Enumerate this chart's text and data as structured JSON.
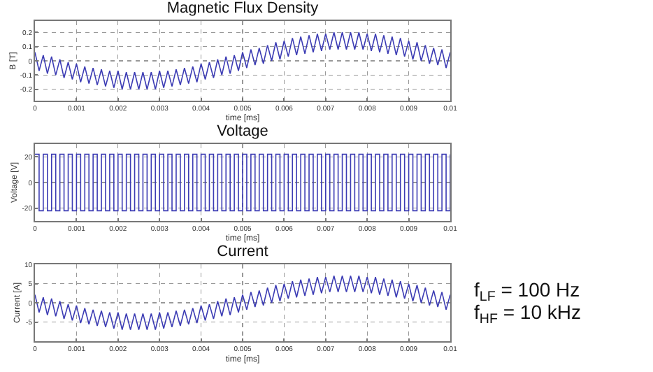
{
  "chart_data": [
    {
      "type": "line",
      "title": "Magnetic Flux Density",
      "xlabel": "time [ms]",
      "ylabel": "B [T]",
      "xlim": [
        0,
        0.01
      ],
      "xticks": [
        0,
        0.001,
        0.002,
        0.003,
        0.004,
        0.005,
        0.006,
        0.007,
        0.008,
        0.009,
        0.01
      ],
      "ylim": [
        -0.28,
        0.28
      ],
      "yticks": [
        -0.2,
        -0.1,
        0,
        0.1,
        0.2
      ],
      "grid": true,
      "line_style": "solid",
      "x": [
        0,
        0.0001,
        0.0002,
        0.0003,
        0.0004,
        0.0005,
        0.0006,
        0.0007,
        0.0008,
        0.0009,
        0.001,
        0.0011,
        0.0012,
        0.0013,
        0.0014,
        0.0015,
        0.0016,
        0.0017,
        0.0018,
        0.0019,
        0.002,
        0.0021,
        0.0022,
        0.0023,
        0.0024,
        0.0025,
        0.0026,
        0.0027,
        0.0028,
        0.0029,
        0.003,
        0.0031,
        0.0032,
        0.0033,
        0.0034,
        0.0035,
        0.0036,
        0.0037,
        0.0038,
        0.0039,
        0.004,
        0.0041,
        0.0042,
        0.0043,
        0.0044,
        0.0045,
        0.0046,
        0.0047,
        0.0048,
        0.0049,
        0.005,
        0.0051,
        0.0052,
        0.0053,
        0.0054,
        0.0055,
        0.0056,
        0.0057,
        0.0058,
        0.0059,
        0.006,
        0.0061,
        0.0062,
        0.0063,
        0.0064,
        0.0065,
        0.0066,
        0.0067,
        0.0068,
        0.0069,
        0.007,
        0.0071,
        0.0072,
        0.0073,
        0.0074,
        0.0075,
        0.0076,
        0.0077,
        0.0078,
        0.0079,
        0.008,
        0.0081,
        0.0082,
        0.0083,
        0.0084,
        0.0085,
        0.0086,
        0.0087,
        0.0088,
        0.0089,
        0.009,
        0.0091,
        0.0092,
        0.0093,
        0.0094,
        0.0095,
        0.0096,
        0.0097,
        0.0098,
        0.0099,
        0.01
      ],
      "series": [
        {
          "color": "#3c3cb4",
          "values": [
            0.06,
            -0.07,
            0.04,
            -0.09,
            0.03,
            -0.1,
            0.01,
            -0.12,
            -0.01,
            -0.13,
            -0.02,
            -0.15,
            -0.04,
            -0.16,
            -0.05,
            -0.17,
            -0.06,
            -0.18,
            -0.07,
            -0.19,
            -0.07,
            -0.2,
            -0.08,
            -0.2,
            -0.08,
            -0.2,
            -0.08,
            -0.2,
            -0.08,
            -0.2,
            -0.07,
            -0.19,
            -0.07,
            -0.18,
            -0.06,
            -0.17,
            -0.05,
            -0.16,
            -0.04,
            -0.15,
            -0.02,
            -0.13,
            -0.01,
            -0.12,
            0.01,
            -0.1,
            0.03,
            -0.09,
            0.04,
            -0.07,
            0.06,
            -0.05,
            0.08,
            -0.03,
            0.09,
            -0.02,
            0.11,
            0.0,
            0.13,
            0.01,
            0.14,
            0.03,
            0.16,
            0.04,
            0.17,
            0.05,
            0.18,
            0.06,
            0.19,
            0.07,
            0.19,
            0.08,
            0.2,
            0.08,
            0.2,
            0.08,
            0.2,
            0.08,
            0.2,
            0.08,
            0.19,
            0.07,
            0.19,
            0.06,
            0.18,
            0.05,
            0.17,
            0.04,
            0.16,
            0.03,
            0.14,
            0.01,
            0.13,
            0.0,
            0.11,
            -0.02,
            0.09,
            -0.03,
            0.08,
            -0.05,
            0.06
          ]
        }
      ]
    },
    {
      "type": "step",
      "title": "Voltage",
      "xlabel": "time [ms]",
      "ylabel": "Voltage [V]",
      "xlim": [
        0,
        0.01
      ],
      "xticks": [
        0,
        0.001,
        0.002,
        0.003,
        0.004,
        0.005,
        0.006,
        0.007,
        0.008,
        0.009,
        0.01
      ],
      "ylim": [
        -30,
        30
      ],
      "yticks": [
        -20,
        0,
        20
      ],
      "grid": true,
      "line_style": "solid",
      "x": [
        0,
        0.0001,
        0.0002,
        0.0003,
        0.0004,
        0.0005,
        0.0006,
        0.0007,
        0.0008,
        0.0009,
        0.001,
        0.0011,
        0.0012,
        0.0013,
        0.0014,
        0.0015,
        0.0016,
        0.0017,
        0.0018,
        0.0019,
        0.002,
        0.0021,
        0.0022,
        0.0023,
        0.0024,
        0.0025,
        0.0026,
        0.0027,
        0.0028,
        0.0029,
        0.003,
        0.0031,
        0.0032,
        0.0033,
        0.0034,
        0.0035,
        0.0036,
        0.0037,
        0.0038,
        0.0039,
        0.004,
        0.0041,
        0.0042,
        0.0043,
        0.0044,
        0.0045,
        0.0046,
        0.0047,
        0.0048,
        0.0049,
        0.005,
        0.0051,
        0.0052,
        0.0053,
        0.0054,
        0.0055,
        0.0056,
        0.0057,
        0.0058,
        0.0059,
        0.006,
        0.0061,
        0.0062,
        0.0063,
        0.0064,
        0.0065,
        0.0066,
        0.0067,
        0.0068,
        0.0069,
        0.007,
        0.0071,
        0.0072,
        0.0073,
        0.0074,
        0.0075,
        0.0076,
        0.0077,
        0.0078,
        0.0079,
        0.008,
        0.0081,
        0.0082,
        0.0083,
        0.0084,
        0.0085,
        0.0086,
        0.0087,
        0.0088,
        0.0089,
        0.009,
        0.0091,
        0.0092,
        0.0093,
        0.0094,
        0.0095,
        0.0096,
        0.0097,
        0.0098,
        0.0099,
        0.01
      ],
      "series": [
        {
          "color": "#3c3cb4",
          "values": [
            22,
            -22,
            22,
            -22,
            22,
            -22,
            22,
            -22,
            22,
            -22,
            22,
            -22,
            22,
            -22,
            22,
            -22,
            22,
            -22,
            22,
            -22,
            22,
            -22,
            22,
            -22,
            22,
            -22,
            22,
            -22,
            22,
            -22,
            22,
            -22,
            22,
            -22,
            22,
            -22,
            22,
            -22,
            22,
            -22,
            22,
            -22,
            22,
            -22,
            22,
            -22,
            22,
            -22,
            22,
            -22,
            22,
            -22,
            22,
            -22,
            22,
            -22,
            22,
            -22,
            22,
            -22,
            22,
            -22,
            22,
            -22,
            22,
            -22,
            22,
            -22,
            22,
            -22,
            22,
            -22,
            22,
            -22,
            22,
            -22,
            22,
            -22,
            22,
            -22,
            22,
            -22,
            22,
            -22,
            22,
            -22,
            22,
            -22,
            22,
            -22,
            22,
            -22,
            22,
            -22,
            22,
            -22,
            22,
            -22,
            22,
            -22,
            22
          ]
        }
      ]
    },
    {
      "type": "line",
      "title": "Current",
      "xlabel": "time [ms]",
      "ylabel": "Current [A]",
      "xlim": [
        0,
        0.01
      ],
      "xticks": [
        0,
        0.001,
        0.002,
        0.003,
        0.004,
        0.005,
        0.006,
        0.007,
        0.008,
        0.009,
        0.01
      ],
      "ylim": [
        -10,
        10
      ],
      "yticks": [
        {
          "value": -10,
          "label": null
        },
        -5,
        0,
        5,
        10
      ],
      "grid": true,
      "line_style": "solid",
      "annotations": [
        "f$_{LF}$ = 100 Hz",
        "f$_{HF}$ = 10 kHz"
      ],
      "x": [
        0,
        0.0001,
        0.0002,
        0.0003,
        0.0004,
        0.0005,
        0.0006,
        0.0007,
        0.0008,
        0.0009,
        0.001,
        0.0011,
        0.0012,
        0.0013,
        0.0014,
        0.0015,
        0.0016,
        0.0017,
        0.0018,
        0.0019,
        0.002,
        0.0021,
        0.0022,
        0.0023,
        0.0024,
        0.0025,
        0.0026,
        0.0027,
        0.0028,
        0.0029,
        0.003,
        0.0031,
        0.0032,
        0.0033,
        0.0034,
        0.0035,
        0.0036,
        0.0037,
        0.0038,
        0.0039,
        0.004,
        0.0041,
        0.0042,
        0.0043,
        0.0044,
        0.0045,
        0.0046,
        0.0047,
        0.0048,
        0.0049,
        0.005,
        0.0051,
        0.0052,
        0.0053,
        0.0054,
        0.0055,
        0.0056,
        0.0057,
        0.0058,
        0.0059,
        0.006,
        0.0061,
        0.0062,
        0.0063,
        0.0064,
        0.0065,
        0.0066,
        0.0067,
        0.0068,
        0.0069,
        0.007,
        0.0071,
        0.0072,
        0.0073,
        0.0074,
        0.0075,
        0.0076,
        0.0077,
        0.0078,
        0.0079,
        0.008,
        0.0081,
        0.0082,
        0.0083,
        0.0084,
        0.0085,
        0.0086,
        0.0087,
        0.0088,
        0.0089,
        0.009,
        0.0091,
        0.0092,
        0.0093,
        0.0094,
        0.0095,
        0.0096,
        0.0097,
        0.0098,
        0.0099,
        0.01
      ],
      "series": [
        {
          "color": "#3c3cb4",
          "values": [
            2.1,
            -2.5,
            1.4,
            -3.2,
            1.1,
            -3.5,
            0.4,
            -4.2,
            -0.4,
            -4.6,
            -0.7,
            -5.3,
            -1.4,
            -5.6,
            -1.8,
            -6.0,
            -2.1,
            -6.3,
            -2.5,
            -6.7,
            -2.5,
            -7.0,
            -2.8,
            -7.0,
            -2.8,
            -7.0,
            -2.8,
            -7.0,
            -2.8,
            -7.0,
            -2.5,
            -6.7,
            -2.5,
            -6.3,
            -2.1,
            -6.0,
            -1.8,
            -5.6,
            -1.4,
            -5.3,
            -0.7,
            -4.6,
            -0.4,
            -4.2,
            0.4,
            -3.5,
            1.1,
            -3.2,
            1.4,
            -2.5,
            2.1,
            -1.8,
            2.8,
            -1.1,
            3.2,
            -0.7,
            3.9,
            0.0,
            4.6,
            0.4,
            4.9,
            1.1,
            5.6,
            1.4,
            6.0,
            1.8,
            6.3,
            2.1,
            6.7,
            2.5,
            6.7,
            2.8,
            7.0,
            2.8,
            7.0,
            2.8,
            7.0,
            2.8,
            7.0,
            2.8,
            6.7,
            2.5,
            6.7,
            2.1,
            6.3,
            1.8,
            6.0,
            1.4,
            5.6,
            1.1,
            4.9,
            0.4,
            4.6,
            0.0,
            3.9,
            -0.7,
            3.2,
            -1.1,
            2.8,
            -1.8,
            2.1
          ]
        }
      ]
    }
  ]
}
